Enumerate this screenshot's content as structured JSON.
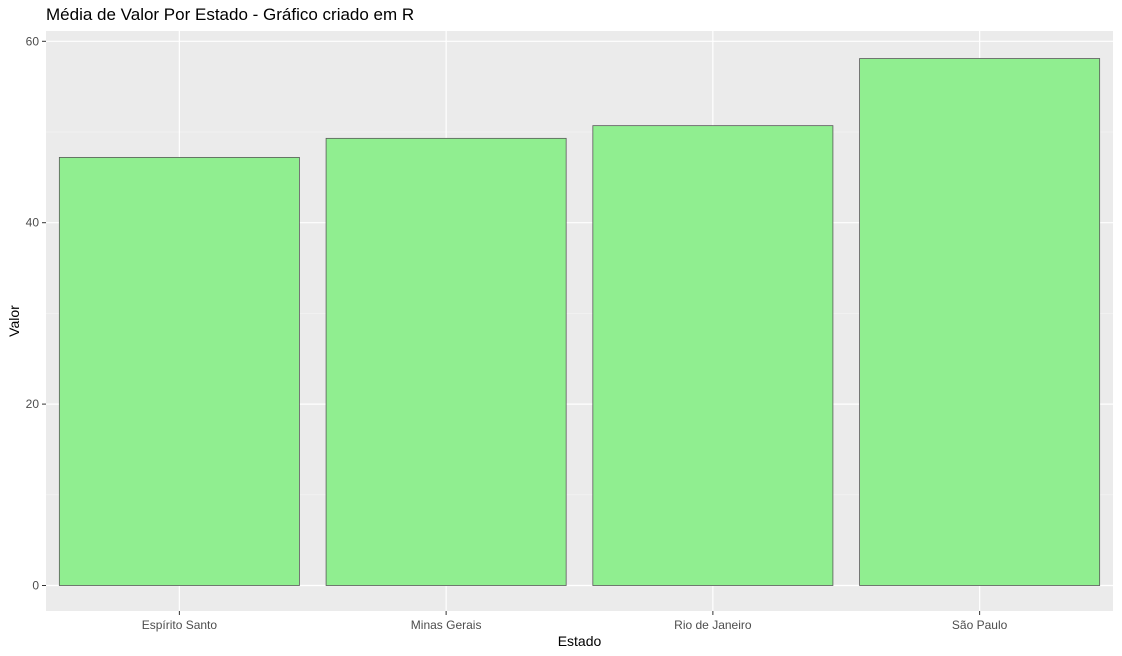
{
  "chart_data": {
    "type": "bar",
    "title": "Média de Valor Por Estado - Gráfico criado em R",
    "xlabel": "Estado",
    "ylabel": "Valor",
    "categories": [
      "Espírito Santo",
      "Minas Gerais",
      "Rio de Janeiro",
      "São Paulo"
    ],
    "values": [
      47.2,
      49.3,
      50.7,
      58.1
    ],
    "ylim": [
      0,
      61
    ],
    "y_ticks": [
      0,
      20,
      40,
      60
    ],
    "y_minor_ticks": [
      10,
      30,
      50
    ],
    "grid": true,
    "colors": {
      "panel_bg": "#ebebeb",
      "grid_major": "#ffffff",
      "grid_minor": "#f5f5f5",
      "bar_fill": "#90ee90",
      "bar_stroke": "#595959",
      "tick_text": "#4d4d4d"
    }
  }
}
